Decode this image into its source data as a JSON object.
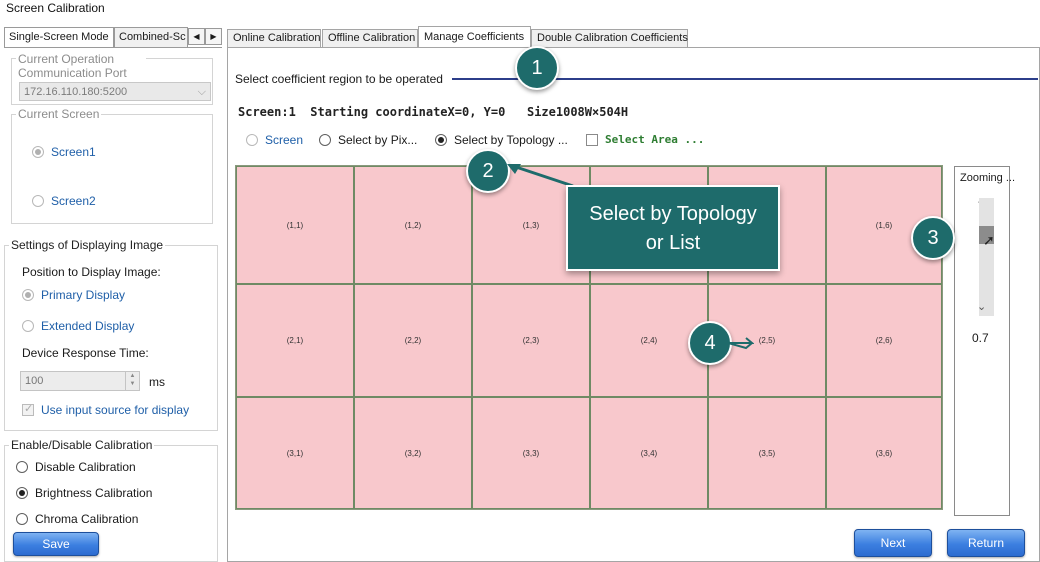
{
  "window": {
    "title": "Screen Calibration"
  },
  "left_tabs": {
    "single": "Single-Screen Mode",
    "combined": "Combined-Sc",
    "prev": "◀",
    "next": "▶"
  },
  "operation": {
    "title": "Current Operation Communication Port",
    "port_value": "172.16.110.180:5200"
  },
  "current_screen": {
    "title": "Current Screen",
    "screens": [
      "Screen1",
      "Screen2"
    ],
    "selected": "Screen1"
  },
  "display_settings": {
    "title": "Settings of Displaying Image",
    "position_label": "Position to Display Image:",
    "primary": "Primary Display",
    "extended": "Extended Display",
    "response_label": "Device Response Time:",
    "response_value": "100",
    "response_unit": "ms",
    "use_input_source": "Use input source for display"
  },
  "calibration": {
    "title": "Enable/Disable Calibration",
    "options": [
      "Disable Calibration",
      "Brightness Calibration",
      "Chroma Calibration"
    ],
    "selected": "Brightness Calibration",
    "save_label": "Save"
  },
  "right_tabs": [
    "Online Calibration",
    "Offline Calibration",
    "Manage Coefficients",
    "Double Calibration Coefficients"
  ],
  "active_tab": "Manage Coefficients",
  "region": {
    "label": "Select coefficient region to be operated",
    "screen_info": "Screen:1  Starting coordinateX=0, Y=0   Size1008W×504H",
    "modes": {
      "screen": "Screen",
      "by_pixel": "Select by Pix...",
      "by_topology": "Select by Topology ...",
      "select_area": "Select Area ..."
    },
    "selected_mode": "Select by Topology ..."
  },
  "grid": {
    "rows": [
      [
        "(1,1)",
        "(1,2)",
        "(1,3)",
        "(1,4)",
        "(1,5)",
        "(1,6)"
      ],
      [
        "(2,1)",
        "(2,2)",
        "(2,3)",
        "(2,4)",
        "(2,5)",
        "(2,6)"
      ],
      [
        "(3,1)",
        "(3,2)",
        "(3,3)",
        "(3,4)",
        "(3,5)",
        "(3,6)"
      ]
    ],
    "cell_color": "#f8c8cc"
  },
  "zoom": {
    "label": "Zooming ...",
    "value": "0.7",
    "level": 0.7
  },
  "buttons": {
    "next": "Next",
    "return": "Return"
  },
  "callouts": {
    "c1": "1",
    "c2": "2",
    "c3": "3",
    "c4": "4",
    "tooltip_line1": "Select by Topology",
    "tooltip_line2": "or List"
  },
  "colors": {
    "callout": "#1e6b6b",
    "accent_blue": "#3c7fe0",
    "region_line": "#2c3e8a"
  }
}
